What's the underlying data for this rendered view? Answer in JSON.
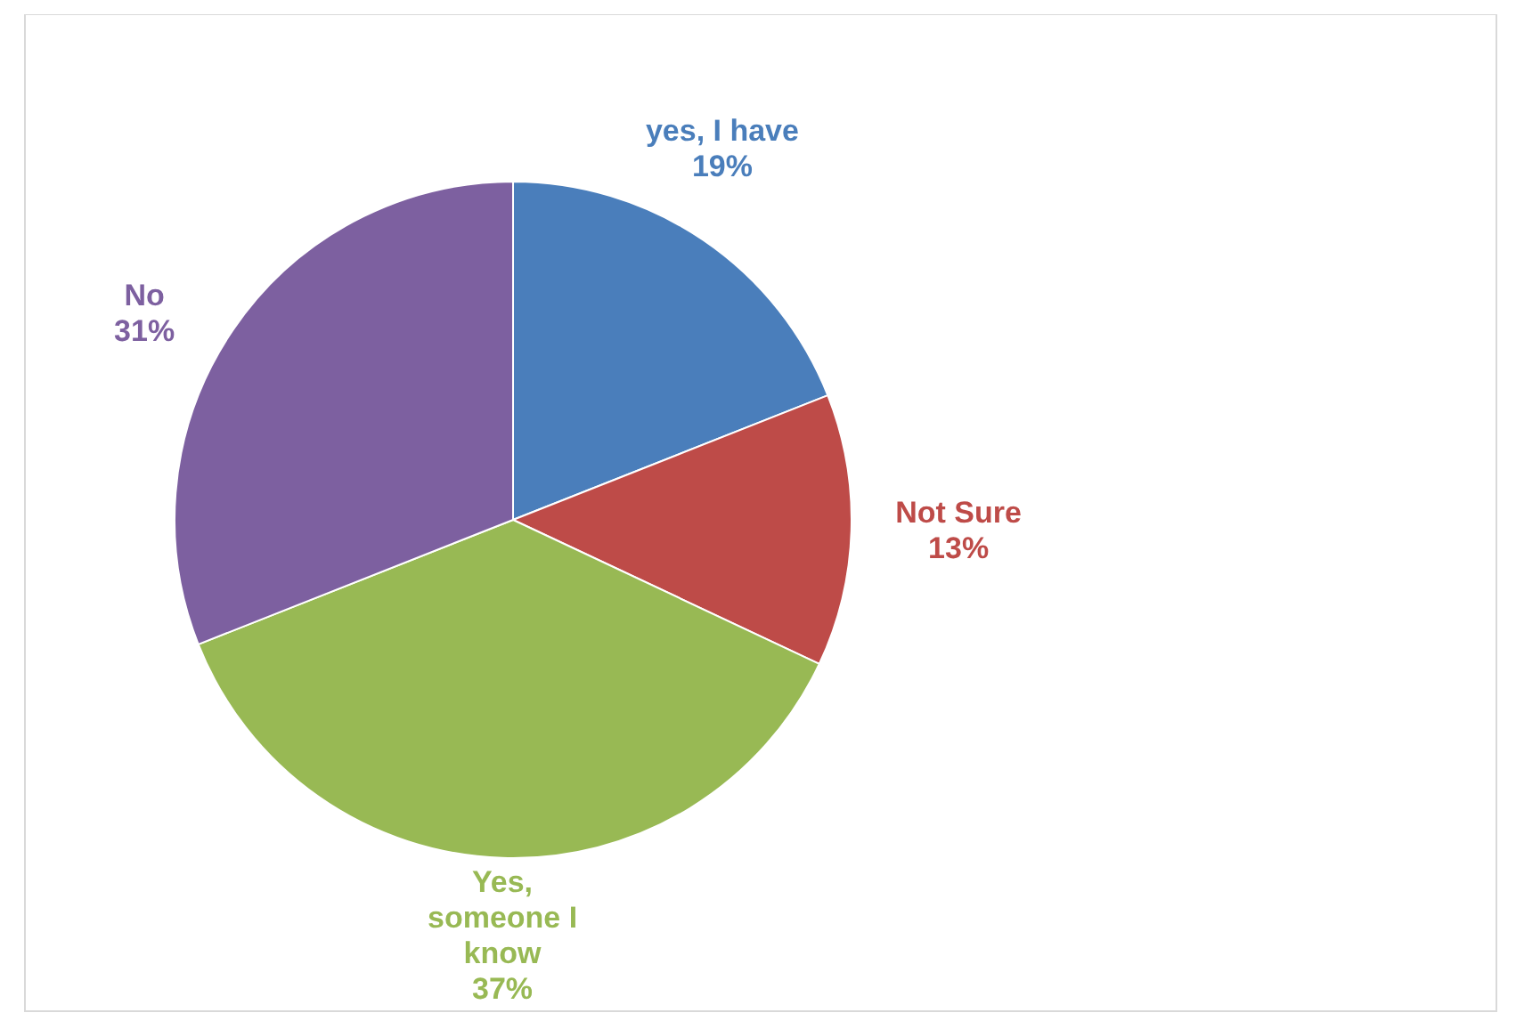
{
  "chart_data": {
    "type": "pie",
    "categories": [
      "yes, I have",
      "Not Sure",
      "Yes, someone I know",
      "No"
    ],
    "values": [
      19,
      13,
      37,
      31
    ],
    "value_labels": [
      "19%",
      "13%",
      "37%",
      "31%"
    ],
    "colors": [
      "#4a7ebb",
      "#be4b48",
      "#98b954",
      "#7d60a0"
    ]
  }
}
